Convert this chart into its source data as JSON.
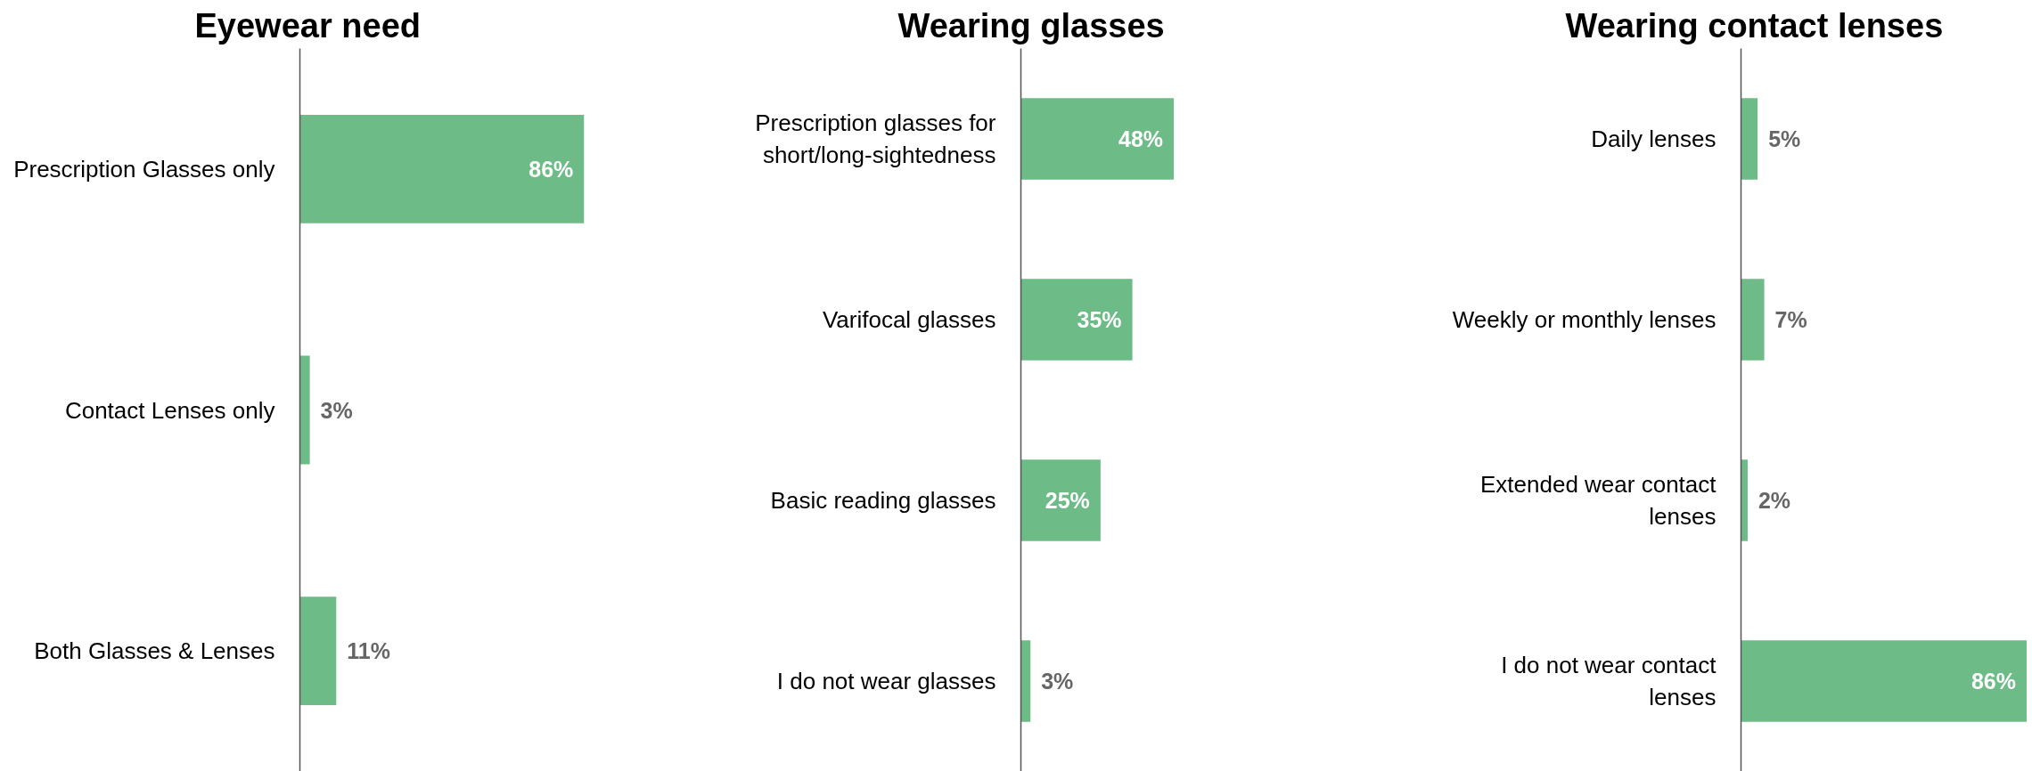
{
  "chart_data": [
    {
      "type": "bar",
      "orientation": "horizontal",
      "title": "Eyewear need",
      "categories": [
        "Prescription Glasses only",
        "Contact Lenses only",
        "Both Glasses & Lenses"
      ],
      "values": [
        86,
        3,
        11
      ],
      "value_labels": [
        "86%",
        "3%",
        "11%"
      ],
      "color": "#6dbb87",
      "tick_labels": "y"
    },
    {
      "type": "bar",
      "orientation": "horizontal",
      "title": "Wearing glasses",
      "categories": [
        "Prescription glasses for short/long-sightedness",
        "Varifocal glasses",
        "Basic reading glasses",
        "I do not wear glasses"
      ],
      "values": [
        48,
        35,
        25,
        3
      ],
      "value_labels": [
        "48%",
        "35%",
        "25%",
        "3%"
      ],
      "color": "#6dbb87",
      "tick_labels": "y"
    },
    {
      "type": "bar",
      "orientation": "horizontal",
      "title": "Wearing contact lenses",
      "categories": [
        "Daily lenses",
        "Weekly or monthly lenses",
        "Extended wear contact lenses",
        "I do not wear contact lenses"
      ],
      "values": [
        5,
        7,
        2,
        86
      ],
      "value_labels": [
        "5%",
        "7%",
        "2%",
        "86%"
      ],
      "color": "#6dbb87",
      "tick_labels": "y"
    }
  ]
}
